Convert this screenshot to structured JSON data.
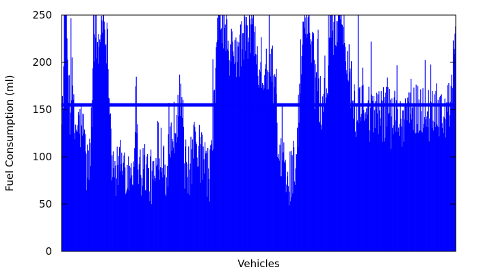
{
  "chart_data": {
    "type": "bar",
    "title": "",
    "xlabel": "Vehicles",
    "ylabel": "Fuel Consumption (ml)",
    "ylim": [
      0,
      250
    ],
    "yticks": [
      0,
      50,
      100,
      150,
      200,
      250
    ],
    "grid": false,
    "legend": "none",
    "bar_color": "#0000ff",
    "reference_line": {
      "y": 155,
      "color": "#0000ff"
    },
    "sample_count": 700,
    "profile_segments": [
      [
        0,
        135
      ],
      [
        3,
        190
      ],
      [
        6,
        250
      ],
      [
        14,
        150
      ],
      [
        18,
        175
      ],
      [
        22,
        125
      ],
      [
        28,
        130
      ],
      [
        34,
        130
      ],
      [
        40,
        118
      ],
      [
        44,
        85
      ],
      [
        50,
        95
      ],
      [
        55,
        180
      ],
      [
        58,
        250
      ],
      [
        64,
        205
      ],
      [
        72,
        250
      ],
      [
        78,
        235
      ],
      [
        84,
        180
      ],
      [
        88,
        95
      ],
      [
        94,
        78
      ],
      [
        102,
        86
      ],
      [
        110,
        90
      ],
      [
        118,
        82
      ],
      [
        126,
        88
      ],
      [
        132,
        160
      ],
      [
        136,
        90
      ],
      [
        140,
        82
      ],
      [
        148,
        88
      ],
      [
        154,
        78
      ],
      [
        162,
        72
      ],
      [
        168,
        80
      ],
      [
        176,
        110
      ],
      [
        182,
        95
      ],
      [
        186,
        78
      ],
      [
        194,
        120
      ],
      [
        200,
        130
      ],
      [
        206,
        150
      ],
      [
        212,
        170
      ],
      [
        218,
        90
      ],
      [
        224,
        78
      ],
      [
        232,
        95
      ],
      [
        238,
        115
      ],
      [
        246,
        98
      ],
      [
        254,
        90
      ],
      [
        262,
        78
      ],
      [
        268,
        110
      ],
      [
        276,
        235
      ],
      [
        282,
        250
      ],
      [
        290,
        225
      ],
      [
        298,
        200
      ],
      [
        306,
        215
      ],
      [
        314,
        200
      ],
      [
        322,
        230
      ],
      [
        330,
        220
      ],
      [
        338,
        235
      ],
      [
        346,
        210
      ],
      [
        354,
        190
      ],
      [
        362,
        180
      ],
      [
        370,
        200
      ],
      [
        378,
        170
      ],
      [
        386,
        80
      ],
      [
        392,
        95
      ],
      [
        398,
        75
      ],
      [
        402,
        80
      ],
      [
        406,
        78
      ],
      [
        412,
        92
      ],
      [
        418,
        105
      ],
      [
        424,
        195
      ],
      [
        430,
        240
      ],
      [
        436,
        250
      ],
      [
        442,
        230
      ],
      [
        448,
        205
      ],
      [
        454,
        165
      ],
      [
        460,
        150
      ],
      [
        466,
        185
      ],
      [
        470,
        160
      ],
      [
        476,
        250
      ],
      [
        482,
        230
      ],
      [
        490,
        250
      ],
      [
        498,
        240
      ],
      [
        506,
        200
      ],
      [
        512,
        180
      ],
      [
        518,
        150
      ],
      [
        524,
        155
      ],
      [
        530,
        140
      ],
      [
        536,
        150
      ],
      [
        542,
        145
      ],
      [
        548,
        132
      ],
      [
        554,
        140
      ],
      [
        560,
        150
      ],
      [
        566,
        145
      ],
      [
        572,
        140
      ],
      [
        578,
        160
      ],
      [
        584,
        135
      ],
      [
        590,
        145
      ],
      [
        596,
        140
      ],
      [
        602,
        130
      ],
      [
        608,
        145
      ],
      [
        614,
        150
      ],
      [
        620,
        155
      ],
      [
        626,
        140
      ],
      [
        632,
        150
      ],
      [
        638,
        145
      ],
      [
        644,
        150
      ],
      [
        650,
        140
      ],
      [
        656,
        148
      ],
      [
        662,
        152
      ],
      [
        668,
        150
      ],
      [
        674,
        145
      ],
      [
        680,
        138
      ],
      [
        686,
        150
      ],
      [
        692,
        162
      ],
      [
        699,
        236
      ]
    ]
  }
}
